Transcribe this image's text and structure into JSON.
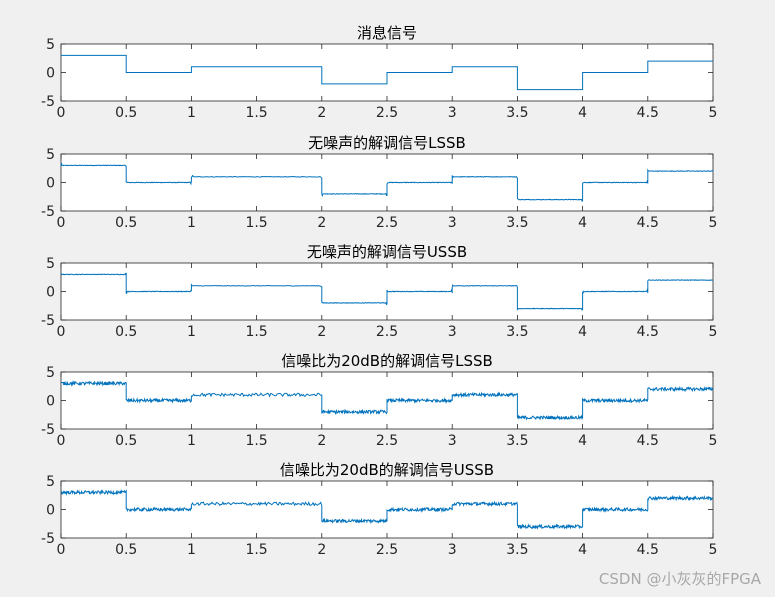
{
  "chart_data": [
    {
      "type": "line",
      "title": "消息信号",
      "xlim": [
        0,
        5
      ],
      "ylim": [
        -5,
        5
      ],
      "xticks": [
        0,
        0.5,
        1,
        1.5,
        2,
        2.5,
        3,
        3.5,
        4,
        4.5,
        5
      ],
      "yticks": [
        -5,
        0,
        5
      ],
      "noise": "none",
      "series": [
        {
          "color": "#0072bd",
          "steps": [
            {
              "x0": 0,
              "x1": 0.5,
              "y": 3
            },
            {
              "x0": 0.5,
              "x1": 1,
              "y": 0
            },
            {
              "x0": 1,
              "x1": 2,
              "y": 1
            },
            {
              "x0": 2,
              "x1": 2.5,
              "y": -2
            },
            {
              "x0": 2.5,
              "x1": 3,
              "y": 0
            },
            {
              "x0": 3,
              "x1": 3.5,
              "y": 1
            },
            {
              "x0": 3.5,
              "x1": 4,
              "y": -3
            },
            {
              "x0": 4,
              "x1": 4.5,
              "y": 0
            },
            {
              "x0": 4.5,
              "x1": 5,
              "y": 2
            }
          ]
        }
      ]
    },
    {
      "type": "line",
      "title": "无噪声的解调信号LSSB",
      "xlim": [
        0,
        5
      ],
      "ylim": [
        -5,
        5
      ],
      "xticks": [
        0,
        0.5,
        1,
        1.5,
        2,
        2.5,
        3,
        3.5,
        4,
        4.5,
        5
      ],
      "yticks": [
        -5,
        0,
        5
      ],
      "noise": "low",
      "series": [
        {
          "color": "#0072bd",
          "steps": [
            {
              "x0": 0,
              "x1": 0.5,
              "y": 3
            },
            {
              "x0": 0.5,
              "x1": 1,
              "y": 0
            },
            {
              "x0": 1,
              "x1": 2,
              "y": 1
            },
            {
              "x0": 2,
              "x1": 2.5,
              "y": -2
            },
            {
              "x0": 2.5,
              "x1": 3,
              "y": 0
            },
            {
              "x0": 3,
              "x1": 3.5,
              "y": 1
            },
            {
              "x0": 3.5,
              "x1": 4,
              "y": -3
            },
            {
              "x0": 4,
              "x1": 4.5,
              "y": 0
            },
            {
              "x0": 4.5,
              "x1": 5,
              "y": 2
            }
          ]
        }
      ]
    },
    {
      "type": "line",
      "title": "无噪声的解调信号USSB",
      "xlim": [
        0,
        5
      ],
      "ylim": [
        -5,
        5
      ],
      "xticks": [
        0,
        0.5,
        1,
        1.5,
        2,
        2.5,
        3,
        3.5,
        4,
        4.5,
        5
      ],
      "yticks": [
        -5,
        0,
        5
      ],
      "noise": "low",
      "series": [
        {
          "color": "#0072bd",
          "steps": [
            {
              "x0": 0,
              "x1": 0.5,
              "y": 3
            },
            {
              "x0": 0.5,
              "x1": 1,
              "y": 0
            },
            {
              "x0": 1,
              "x1": 2,
              "y": 1
            },
            {
              "x0": 2,
              "x1": 2.5,
              "y": -2
            },
            {
              "x0": 2.5,
              "x1": 3,
              "y": 0
            },
            {
              "x0": 3,
              "x1": 3.5,
              "y": 1
            },
            {
              "x0": 3.5,
              "x1": 4,
              "y": -3
            },
            {
              "x0": 4,
              "x1": 4.5,
              "y": 0
            },
            {
              "x0": 4.5,
              "x1": 5,
              "y": 2
            }
          ]
        }
      ]
    },
    {
      "type": "line",
      "title": "信噪比为20dB的解调信号LSSB",
      "xlim": [
        0,
        5
      ],
      "ylim": [
        -5,
        5
      ],
      "xticks": [
        0,
        0.5,
        1,
        1.5,
        2,
        2.5,
        3,
        3.5,
        4,
        4.5,
        5
      ],
      "yticks": [
        -5,
        0,
        5
      ],
      "noise": "high",
      "series": [
        {
          "color": "#0072bd",
          "steps": [
            {
              "x0": 0,
              "x1": 0.5,
              "y": 3
            },
            {
              "x0": 0.5,
              "x1": 1,
              "y": 0
            },
            {
              "x0": 1,
              "x1": 2,
              "y": 1
            },
            {
              "x0": 2,
              "x1": 2.5,
              "y": -2
            },
            {
              "x0": 2.5,
              "x1": 3,
              "y": 0
            },
            {
              "x0": 3,
              "x1": 3.5,
              "y": 1
            },
            {
              "x0": 3.5,
              "x1": 4,
              "y": -3
            },
            {
              "x0": 4,
              "x1": 4.5,
              "y": 0
            },
            {
              "x0": 4.5,
              "x1": 5,
              "y": 2
            }
          ]
        }
      ]
    },
    {
      "type": "line",
      "title": "信噪比为20dB的解调信号USSB",
      "xlim": [
        0,
        5
      ],
      "ylim": [
        -5,
        5
      ],
      "xticks": [
        0,
        0.5,
        1,
        1.5,
        2,
        2.5,
        3,
        3.5,
        4,
        4.5,
        5
      ],
      "yticks": [
        -5,
        0,
        5
      ],
      "noise": "high",
      "series": [
        {
          "color": "#0072bd",
          "steps": [
            {
              "x0": 0,
              "x1": 0.5,
              "y": 3
            },
            {
              "x0": 0.5,
              "x1": 1,
              "y": 0
            },
            {
              "x0": 1,
              "x1": 2,
              "y": 1
            },
            {
              "x0": 2,
              "x1": 2.5,
              "y": -2
            },
            {
              "x0": 2.5,
              "x1": 3,
              "y": 0
            },
            {
              "x0": 3,
              "x1": 3.5,
              "y": 1
            },
            {
              "x0": 3.5,
              "x1": 4,
              "y": -3
            },
            {
              "x0": 4,
              "x1": 4.5,
              "y": 0
            },
            {
              "x0": 4.5,
              "x1": 5,
              "y": 2
            }
          ]
        }
      ]
    }
  ],
  "watermark": "CSDN @小灰灰的FPGA"
}
